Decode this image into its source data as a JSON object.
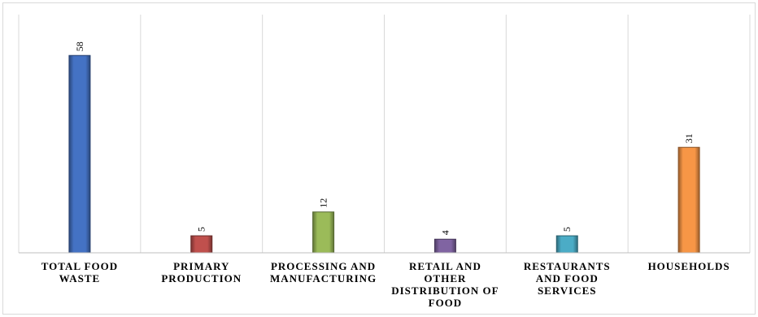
{
  "chart_data": {
    "type": "bar",
    "title": "",
    "xlabel": "",
    "ylabel": "",
    "categories": [
      [
        "TOTAL FOOD",
        "WASTE"
      ],
      [
        "PRIMARY",
        "PRODUCTION"
      ],
      [
        "PROCESSING AND",
        "MANUFACTURING"
      ],
      [
        "RETAIL AND",
        "OTHER",
        "DISTRIBUTION OF",
        "FOOD"
      ],
      [
        "RESTAURANTS",
        "AND FOOD",
        "SERVICES"
      ],
      [
        "HOUSEHOLDS"
      ]
    ],
    "values": [
      58,
      5,
      12,
      4,
      5,
      31
    ],
    "data_labels": [
      "58",
      "5",
      "12",
      "4",
      "5",
      "31"
    ],
    "colors": [
      "#4472c4",
      "#c0504d",
      "#9bbb59",
      "#8064a2",
      "#4bacc6",
      "#f79646"
    ],
    "ylim": [
      0,
      70
    ],
    "grid": "vertical category separators",
    "legend": "none"
  }
}
